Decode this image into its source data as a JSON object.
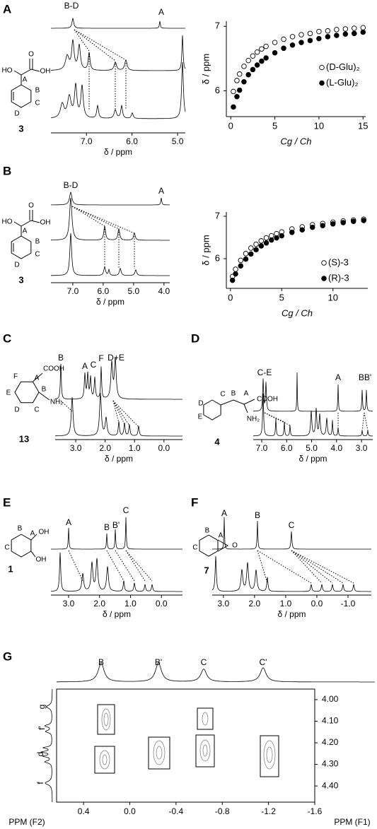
{
  "panels": [
    {
      "label": "A",
      "compound": "3",
      "structure_labels": [
        "O",
        "HO",
        "A",
        "OH",
        "B",
        "C",
        "D"
      ],
      "peak_labels": [
        "B-D",
        "A"
      ],
      "xlabel": "δ / ppm",
      "xlim": [
        7.78,
        4.83
      ],
      "xticks": [
        {
          "value": 7,
          "label": "7.0"
        },
        {
          "value": 6,
          "label": "6.0"
        },
        {
          "value": 5,
          "label": "5.0"
        }
      ]
    },
    {
      "label": "B",
      "compound": "3",
      "structure_labels": [
        "O",
        "HO",
        "A",
        "OH",
        "B",
        "C",
        "D"
      ],
      "peak_labels": [
        "B-D",
        "A"
      ],
      "xlabel": "δ / ppm",
      "xlim": [
        7.72,
        3.81
      ],
      "xticks": [
        {
          "value": 7,
          "label": "7.0"
        },
        {
          "value": 6,
          "label": "6.0"
        },
        {
          "value": 5,
          "label": "5.0"
        },
        {
          "value": 4,
          "label": "4.0"
        }
      ]
    },
    {
      "label": "C",
      "compound": "13",
      "structure_labels": [
        "F",
        "A",
        "COOH",
        "E",
        "B",
        "NH₂",
        "D",
        "C"
      ],
      "peak_labels": [
        "B",
        "A",
        "C",
        "F",
        "D+E"
      ],
      "xlabel": "δ / ppm",
      "xlim": [
        3.7,
        -0.63
      ],
      "xticks": [
        {
          "value": 3,
          "label": "3.0"
        },
        {
          "value": 2,
          "label": "2.0"
        },
        {
          "value": 1,
          "label": "1.0"
        },
        {
          "value": 0,
          "label": "0.0"
        }
      ]
    },
    {
      "label": "D",
      "compound": "4",
      "structure_labels": [
        "C",
        "B",
        "A",
        "COOH",
        "D",
        "NH₂",
        "E"
      ],
      "peak_labels": [
        "C-E",
        "A",
        "BB'"
      ],
      "xlabel": "δ / ppm",
      "xlim": [
        7.34,
        2.55
      ],
      "xticks": [
        {
          "value": 7,
          "label": "7.0"
        },
        {
          "value": 6,
          "label": "6.0"
        },
        {
          "value": 5,
          "label": "5.0"
        },
        {
          "value": 4,
          "label": "4.0"
        },
        {
          "value": 3,
          "label": "3.0"
        }
      ]
    },
    {
      "label": "E",
      "compound": "1",
      "structure_labels": [
        "B",
        "A",
        "OH",
        "C",
        "OH"
      ],
      "peak_labels": [
        "A",
        "B",
        "B'",
        "C"
      ],
      "xlabel": "δ / ppm",
      "xlim": [
        3.57,
        -0.68
      ],
      "xticks": [
        {
          "value": 3,
          "label": "3.0"
        },
        {
          "value": 2,
          "label": "2.0"
        },
        {
          "value": 1,
          "label": "1.0"
        },
        {
          "value": 0,
          "label": "0.0"
        }
      ]
    },
    {
      "label": "F",
      "compound": "7",
      "structure_labels": [
        "C",
        "B",
        "A",
        "O"
      ],
      "peak_labels": [
        "A",
        "B",
        "C"
      ],
      "xlabel": "δ / ppm",
      "xlim": [
        3.36,
        -1.75
      ],
      "xticks": [
        {
          "value": 3,
          "label": "3.0"
        },
        {
          "value": 2,
          "label": "2.0"
        },
        {
          "value": 1,
          "label": "1.0"
        },
        {
          "value": 0,
          "label": "0.0"
        },
        {
          "value": -1,
          "label": "-1.0"
        }
      ]
    },
    {
      "label": "G",
      "peak_labels": [
        "B",
        "B'",
        "C",
        "C'"
      ],
      "f1_labels": [
        "g",
        "f'",
        "d",
        "f"
      ],
      "xlabel": "PPM (F2)",
      "ylabel": "PPM (F1)",
      "xlim": [
        0.633,
        -1.6
      ],
      "ylim": [
        3.951,
        4.475
      ],
      "xticks": [
        0.4,
        {
          "value": 0,
          "label": "0.0"
        },
        -0.4,
        -0.8,
        -1.2,
        -1.6
      ],
      "yticks": [
        {
          "value": 4,
          "label": "4.00"
        },
        {
          "value": 4.1,
          "label": "4.10"
        },
        {
          "value": 4.2,
          "label": "4.20"
        },
        {
          "value": 4.3,
          "label": "4.30"
        },
        {
          "value": 4.4,
          "label": "4.40"
        }
      ]
    }
  ],
  "chart_data": [
    {
      "type": "scatter",
      "xlabel": "Cg / Ch",
      "ylabel": "δ / ppm",
      "xlim": [
        -0.5,
        15.3
      ],
      "ylim": [
        5.6,
        7.08
      ],
      "xticks": [
        0,
        5,
        10,
        15
      ],
      "yticks": [
        6,
        7
      ],
      "legend": "right",
      "x": [
        0.3,
        0.7,
        1.0,
        1.5,
        2.0,
        2.5,
        3.0,
        3.5,
        4.0,
        5,
        6,
        7,
        8,
        9,
        10,
        11,
        12,
        13,
        14,
        15
      ],
      "series": [
        {
          "name": "(D-Glu)₂",
          "color": "#ffffff",
          "values": [
            5.99,
            6.16,
            6.26,
            6.38,
            6.47,
            6.54,
            6.6,
            6.65,
            6.69,
            6.75,
            6.8,
            6.84,
            6.87,
            6.89,
            6.92,
            6.93,
            6.95,
            6.96,
            6.97,
            6.98
          ]
        },
        {
          "name": "(L-Glu)₂",
          "color": "#000000",
          "values": [
            5.75,
            5.91,
            6.01,
            6.14,
            6.25,
            6.33,
            6.4,
            6.46,
            6.51,
            6.59,
            6.66,
            6.71,
            6.75,
            6.78,
            6.81,
            6.84,
            6.86,
            6.88,
            6.89,
            6.91
          ]
        }
      ]
    },
    {
      "type": "scatter",
      "xlabel": "Cg / Ch",
      "ylabel": "δ / ppm",
      "xlim": [
        -0.4,
        13.4
      ],
      "ylim": [
        5.3,
        7.1
      ],
      "xticks": [
        0,
        5,
        10
      ],
      "yticks": [
        6,
        7
      ],
      "legend": "lower right",
      "x": [
        0.2,
        0.5,
        1,
        1.5,
        2,
        2.5,
        3,
        3.5,
        4,
        4.5,
        5,
        6,
        7,
        8,
        9,
        10,
        11,
        12,
        13
      ],
      "series": [
        {
          "name": "(S)-3",
          "color": "#ffffff",
          "values": [
            5.58,
            5.75,
            5.96,
            6.12,
            6.25,
            6.34,
            6.42,
            6.49,
            6.54,
            6.59,
            6.63,
            6.7,
            6.75,
            6.8,
            6.83,
            6.86,
            6.89,
            6.91,
            6.93
          ]
        },
        {
          "name": "(R)-3",
          "color": "#000000",
          "values": [
            5.49,
            5.64,
            5.83,
            5.99,
            6.11,
            6.21,
            6.3,
            6.37,
            6.44,
            6.49,
            6.54,
            6.62,
            6.68,
            6.74,
            6.78,
            6.82,
            6.85,
            6.88,
            6.9
          ]
        }
      ]
    }
  ]
}
